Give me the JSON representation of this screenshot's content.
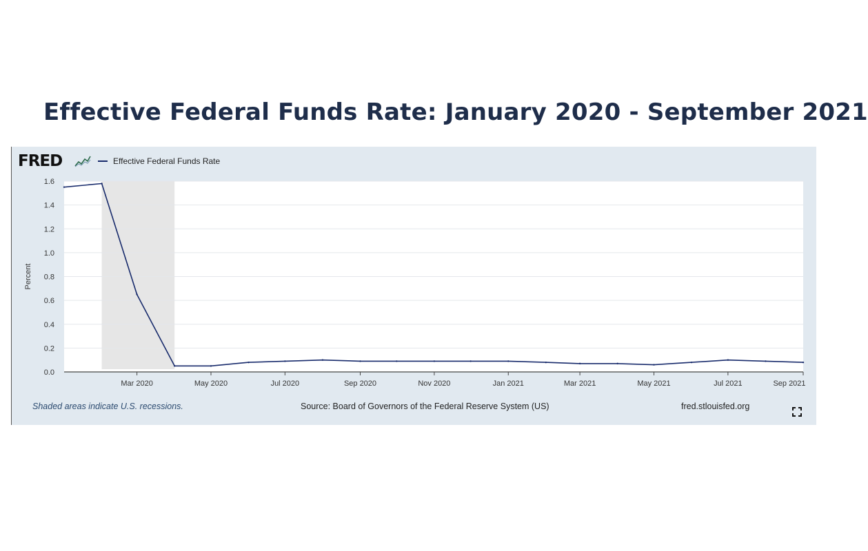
{
  "page": {
    "title": "Effective Federal Funds Rate: January 2020 - September 2021"
  },
  "fred": {
    "logo_text": "FRED",
    "footer_note": "Shaded areas indicate U.S. recessions.",
    "source": "Source: Board of Governors of the Federal Reserve System (US)",
    "url": "fred.stlouisfed.org",
    "icons": {
      "logo": "fred-sparkline-icon",
      "expand": "expand-icon"
    }
  },
  "chart_data": {
    "type": "line",
    "title": "",
    "xlabel": "",
    "ylabel": "Percent",
    "ylim": [
      0,
      1.6
    ],
    "xlim": [
      "2020-01-01",
      "2021-09-01"
    ],
    "y_ticks": [
      "0.0",
      "0.2",
      "0.4",
      "0.6",
      "0.8",
      "1.0",
      "1.2",
      "1.4",
      "1.6"
    ],
    "x_ticks": [
      {
        "label": "Mar 2020",
        "date": "2020-03-01"
      },
      {
        "label": "May 2020",
        "date": "2020-05-01"
      },
      {
        "label": "Jul 2020",
        "date": "2020-07-01"
      },
      {
        "label": "Sep 2020",
        "date": "2020-09-01"
      },
      {
        "label": "Nov 2020",
        "date": "2020-11-01"
      },
      {
        "label": "Jan 2021",
        "date": "2021-01-01"
      },
      {
        "label": "Mar 2021",
        "date": "2021-03-01"
      },
      {
        "label": "May 2021",
        "date": "2021-05-01"
      },
      {
        "label": "Jul 2021",
        "date": "2021-07-01"
      },
      {
        "label": "Sep 2021",
        "date": "2021-09-01"
      }
    ],
    "grid": true,
    "legend": "top-left",
    "recession_shading": [
      {
        "start": "2020-02-01",
        "end": "2020-04-01"
      }
    ],
    "colors": {
      "line": "#172a6b",
      "recession": "#e6e6e6",
      "plot_bg": "#ffffff"
    },
    "series": [
      {
        "name": "Effective Federal Funds Rate",
        "x": [
          "2020-01-01",
          "2020-02-01",
          "2020-03-01",
          "2020-04-01",
          "2020-05-01",
          "2020-06-01",
          "2020-07-01",
          "2020-08-01",
          "2020-09-01",
          "2020-10-01",
          "2020-11-01",
          "2020-12-01",
          "2021-01-01",
          "2021-02-01",
          "2021-03-01",
          "2021-04-01",
          "2021-05-01",
          "2021-06-01",
          "2021-07-01",
          "2021-08-01",
          "2021-09-01"
        ],
        "values": [
          1.55,
          1.58,
          0.65,
          0.05,
          0.05,
          0.08,
          0.09,
          0.1,
          0.09,
          0.09,
          0.09,
          0.09,
          0.09,
          0.08,
          0.07,
          0.07,
          0.06,
          0.08,
          0.1,
          0.09,
          0.08
        ]
      }
    ]
  }
}
